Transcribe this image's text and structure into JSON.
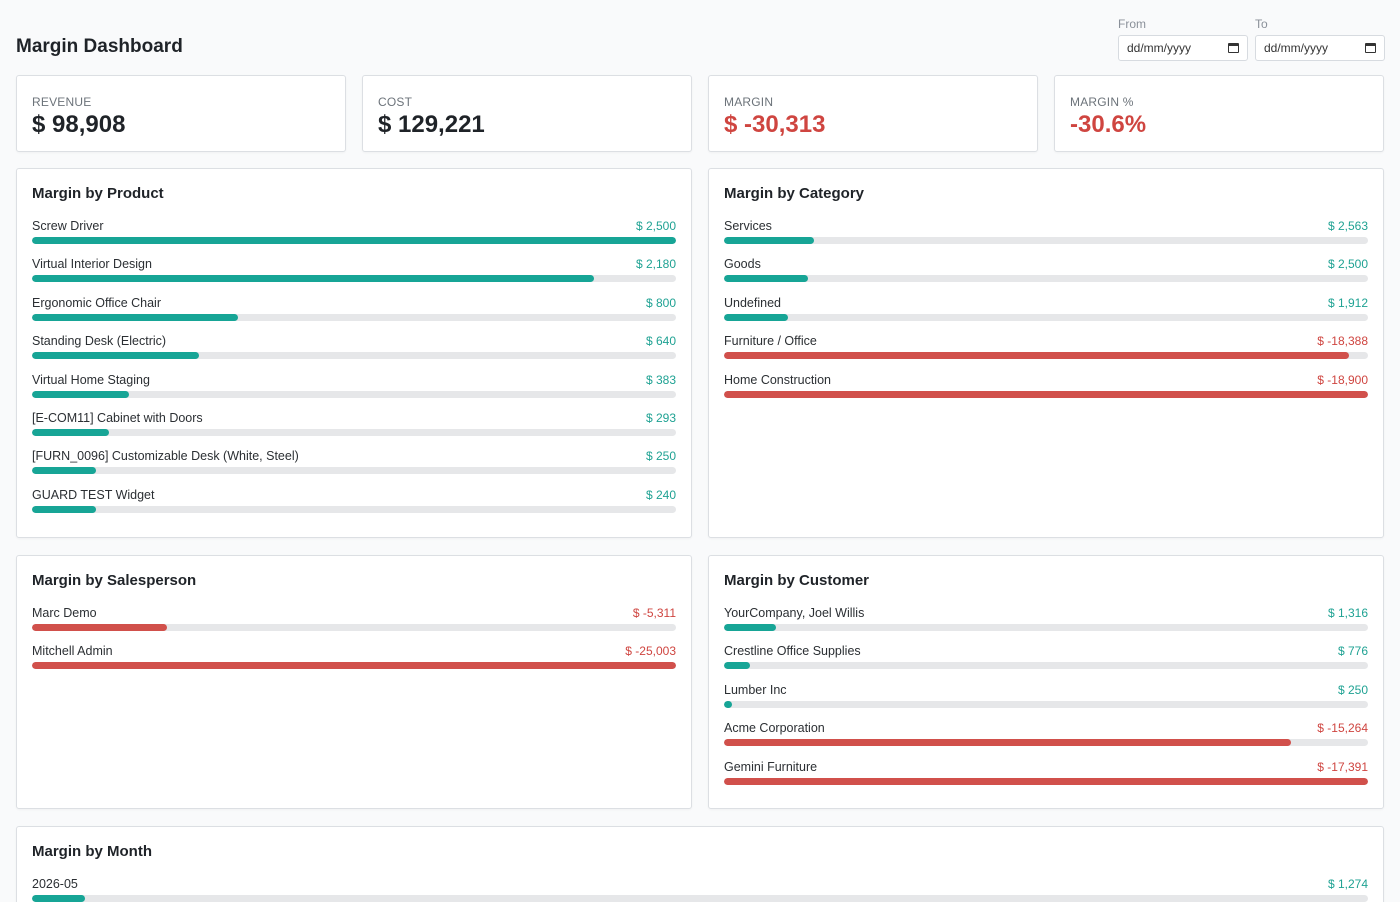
{
  "header": {
    "title": "Margin Dashboard",
    "from_label": "From",
    "to_label": "To",
    "from_value": "dd/mm/yyyy",
    "to_value": "dd/mm/yyyy"
  },
  "kpis": [
    {
      "label": "REVENUE",
      "value": "$ 98,908",
      "negative": false
    },
    {
      "label": "COST",
      "value": "$ 129,221",
      "negative": false
    },
    {
      "label": "MARGIN",
      "value": "$ -30,313",
      "negative": true
    },
    {
      "label": "MARGIN %",
      "value": "-30.6%",
      "negative": true
    }
  ],
  "colors": {
    "positive": "#17a596",
    "negative": "#d1504b",
    "track": "#e6e7e9"
  },
  "panels": {
    "product": {
      "title": "Margin by Product",
      "rows": [
        {
          "name": "Screw Driver",
          "amount": "$ 2,500",
          "value": 2500,
          "fill": 1.0
        },
        {
          "name": "Virtual Interior Design",
          "amount": "$ 2,180",
          "value": 2180,
          "fill": 0.872
        },
        {
          "name": "Ergonomic Office Chair",
          "amount": "$ 800",
          "value": 800,
          "fill": 0.32
        },
        {
          "name": "Standing Desk (Electric)",
          "amount": "$ 640",
          "value": 640,
          "fill": 0.259
        },
        {
          "name": "Virtual Home Staging",
          "amount": "$ 383",
          "value": 383,
          "fill": 0.15
        },
        {
          "name": "[E-COM11] Cabinet with Doors",
          "amount": "$ 293",
          "value": 293,
          "fill": 0.12
        },
        {
          "name": "[FURN_0096] Customizable Desk (White, Steel)",
          "amount": "$ 250",
          "value": 250,
          "fill": 0.1
        },
        {
          "name": "GUARD TEST Widget",
          "amount": "$ 240",
          "value": 240,
          "fill": 0.1
        }
      ]
    },
    "category": {
      "title": "Margin by Category",
      "rows": [
        {
          "name": "Services",
          "amount": "$ 2,563",
          "value": 2563,
          "fill": 0.14
        },
        {
          "name": "Goods",
          "amount": "$ 2,500",
          "value": 2500,
          "fill": 0.13
        },
        {
          "name": "Undefined",
          "amount": "$ 1,912",
          "value": 1912,
          "fill": 0.1
        },
        {
          "name": "Furniture / Office",
          "amount": "$ -18,388",
          "value": -18388,
          "fill": 0.97
        },
        {
          "name": "Home Construction",
          "amount": "$ -18,900",
          "value": -18900,
          "fill": 1.0
        }
      ]
    },
    "salesperson": {
      "title": "Margin by Salesperson",
      "rows": [
        {
          "name": "Marc Demo",
          "amount": "$ -5,311",
          "value": -5311,
          "fill": 0.21
        },
        {
          "name": "Mitchell Admin",
          "amount": "$ -25,003",
          "value": -25003,
          "fill": 1.0
        }
      ]
    },
    "customer": {
      "title": "Margin by Customer",
      "rows": [
        {
          "name": "YourCompany, Joel Willis",
          "amount": "$ 1,316",
          "value": 1316,
          "fill": 0.08
        },
        {
          "name": "Crestline Office Supplies",
          "amount": "$ 776",
          "value": 776,
          "fill": 0.04
        },
        {
          "name": "Lumber Inc",
          "amount": "$ 250",
          "value": 250,
          "fill": 0.012
        },
        {
          "name": "Acme Corporation",
          "amount": "$ -15,264",
          "value": -15264,
          "fill": 0.88
        },
        {
          "name": "Gemini Furniture",
          "amount": "$ -17,391",
          "value": -17391,
          "fill": 1.0
        }
      ]
    },
    "month": {
      "title": "Margin by Month",
      "rows": [
        {
          "name": "2026-05",
          "amount": "$ 1,274",
          "value": 1274,
          "fill": 0.04
        }
      ]
    }
  }
}
